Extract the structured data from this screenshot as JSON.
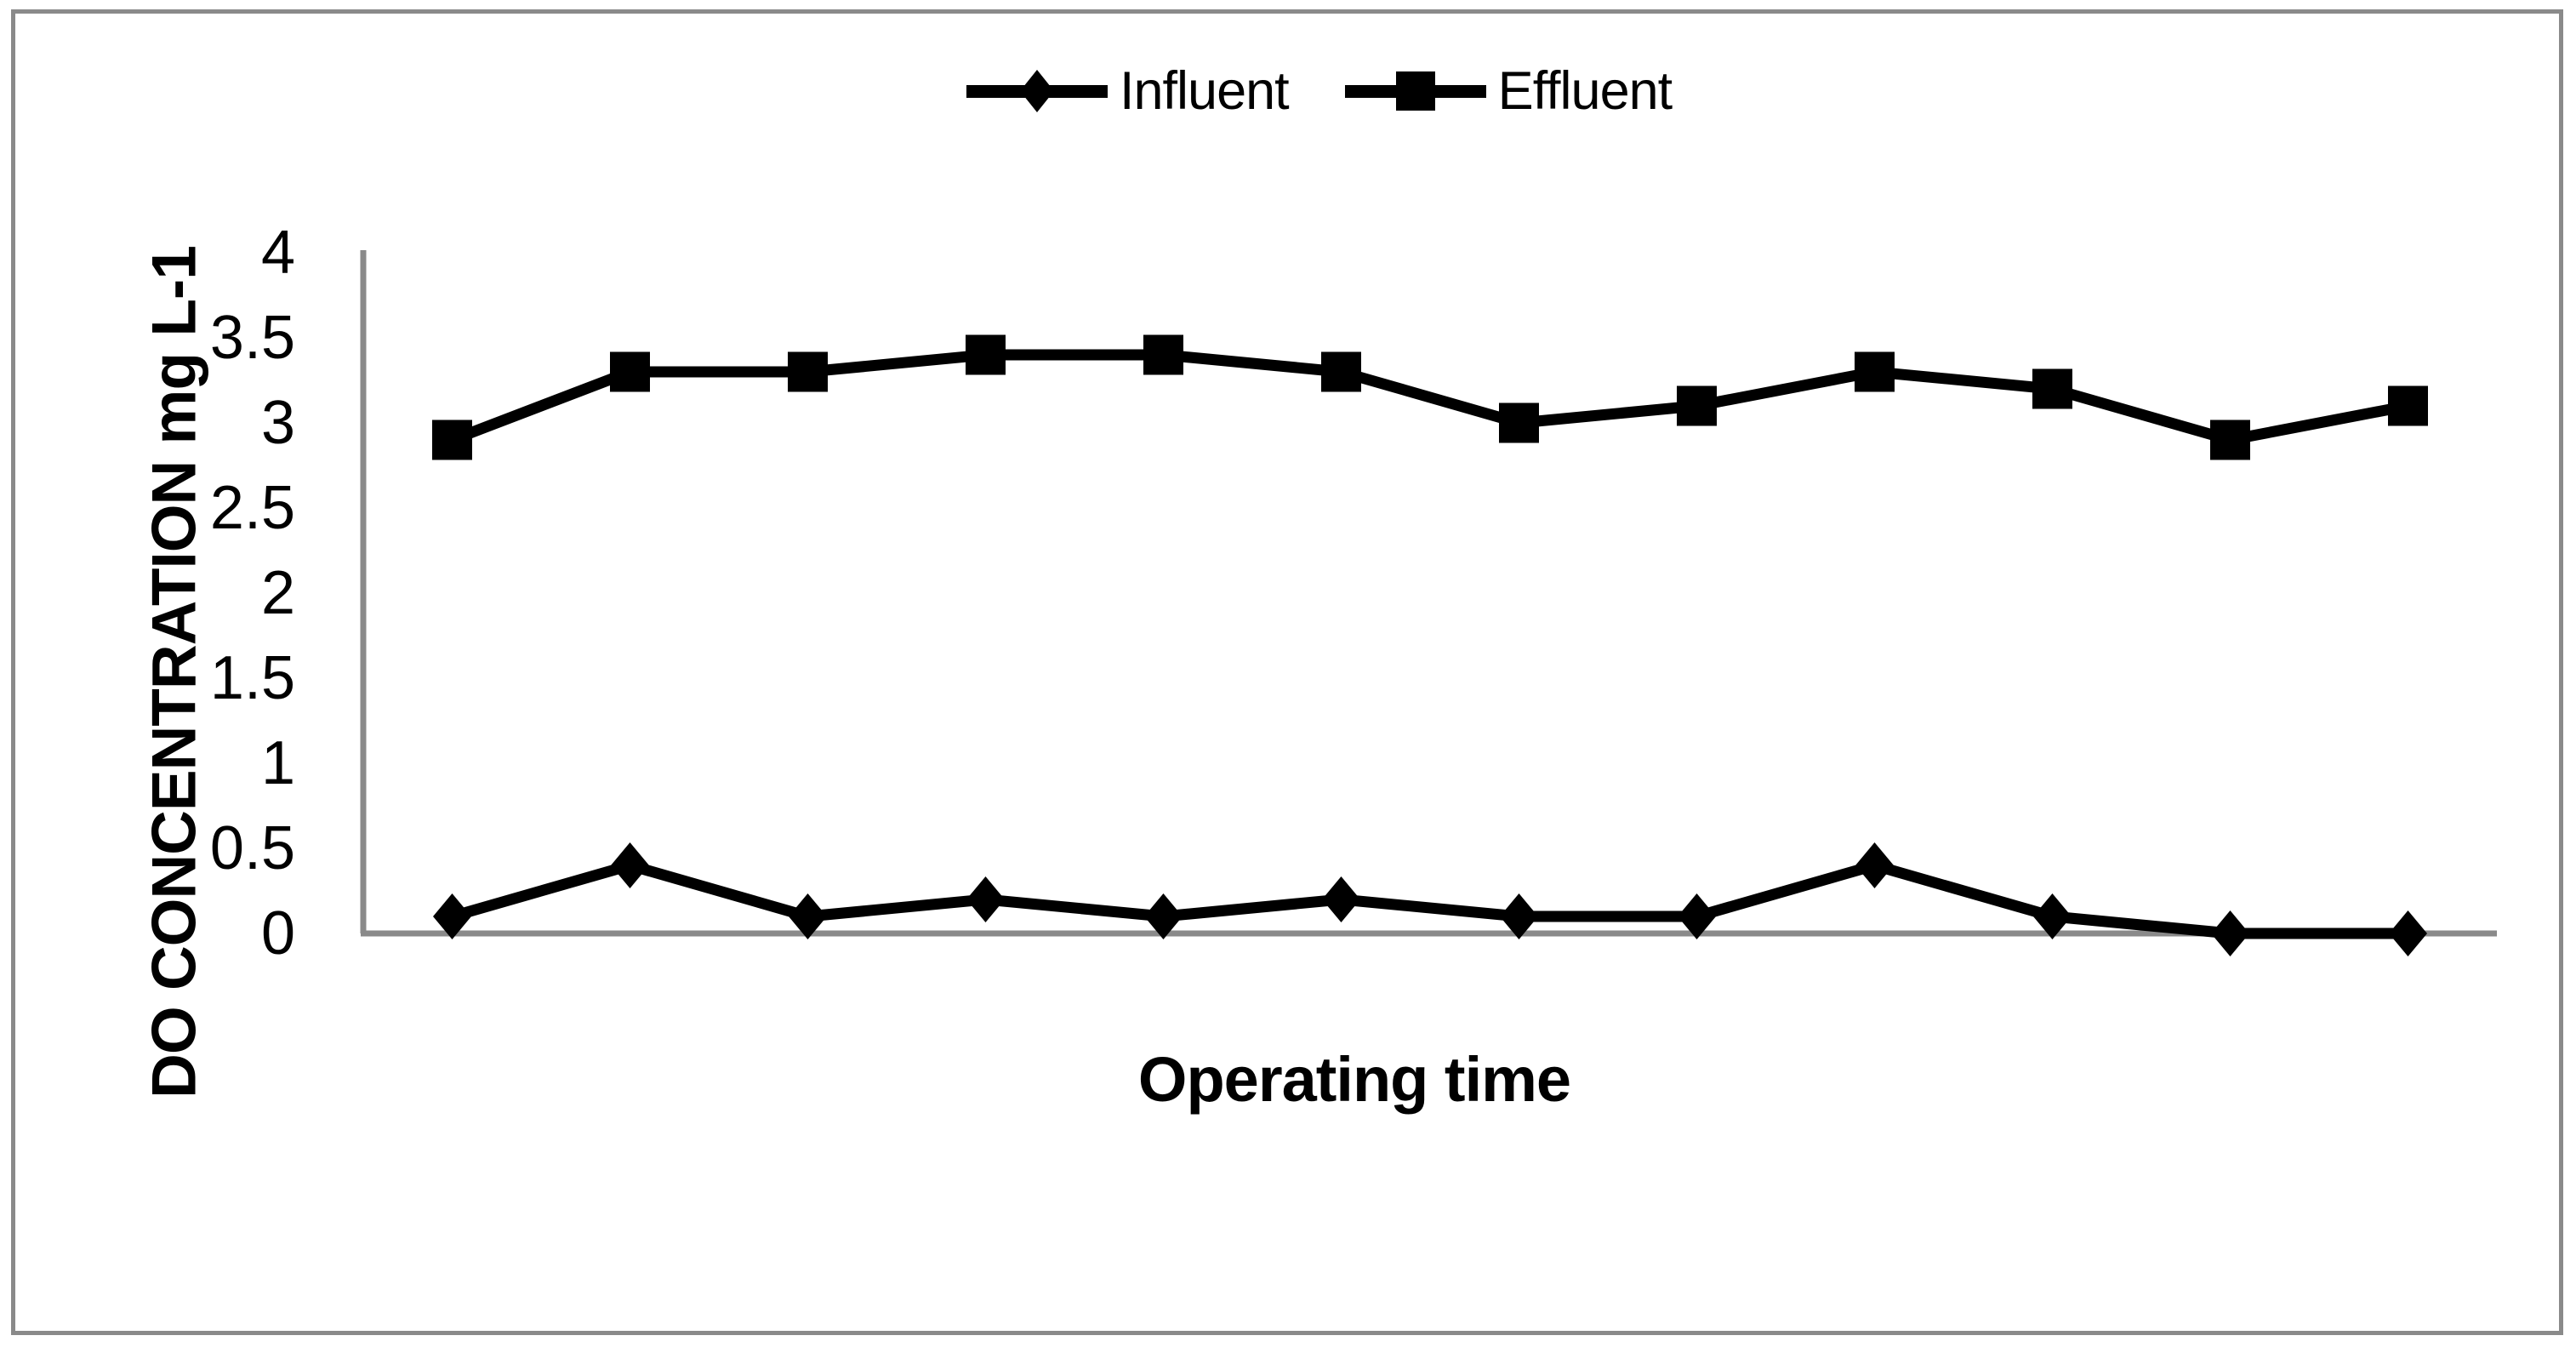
{
  "page": {
    "background": "#ffffff",
    "frame_border_color": "#8a8a8a"
  },
  "chart_data": {
    "type": "line",
    "title": "",
    "xlabel": "Operating time",
    "ylabel": "DO CONCENTRATION mg L-1",
    "x_tick_labels": [],
    "n_points": 12,
    "ylim": [
      0,
      4
    ],
    "ytick_step": 0.5,
    "yticks": [
      "0",
      "0.5",
      "1",
      "1.5",
      "2",
      "2.5",
      "3",
      "3.5",
      "4"
    ],
    "grid": false,
    "legend_position": "top-center",
    "axis_color": "#8a8a8a",
    "series": [
      {
        "name": "Influent",
        "marker": "diamond",
        "color": "#000000",
        "values": [
          0.1,
          0.4,
          0.1,
          0.2,
          0.1,
          0.2,
          0.1,
          0.1,
          0.4,
          0.1,
          0,
          0
        ]
      },
      {
        "name": "Effluent",
        "marker": "square",
        "color": "#000000",
        "values": [
          2.9,
          3.3,
          3.3,
          3.4,
          3.4,
          3.3,
          3.0,
          3.1,
          3.3,
          3.2,
          2.9,
          3.1
        ]
      }
    ]
  }
}
